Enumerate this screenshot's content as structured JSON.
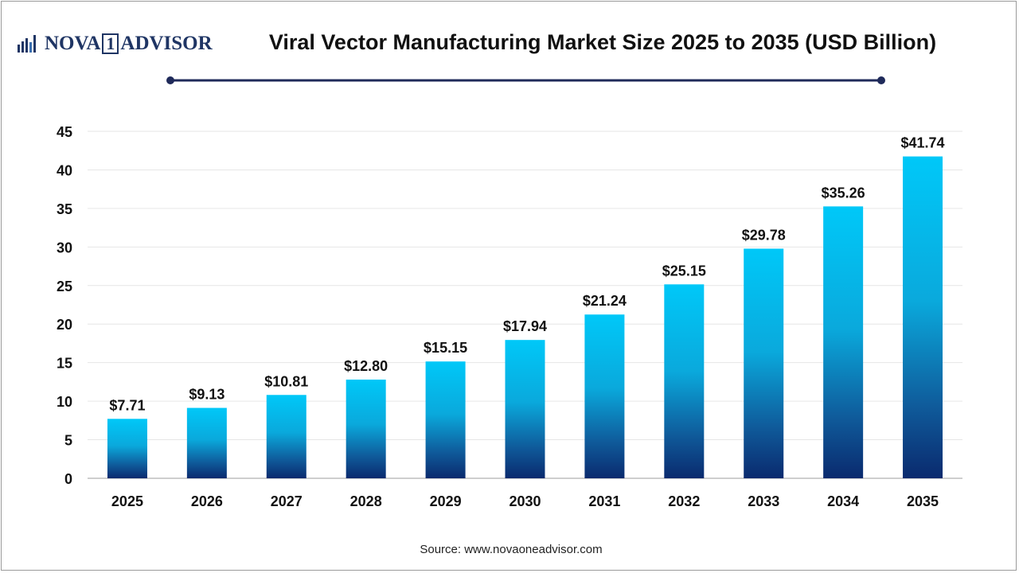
{
  "brand": {
    "logo_text": "NOVA",
    "logo_number": "1",
    "logo_text_2": "ADVISOR",
    "color": "#1f3564"
  },
  "header": {
    "title": "Viral Vector Manufacturing Market Size 2025 to 2035 (USD Billion)"
  },
  "footer": {
    "source": "Source: www.novaoneadvisor.com"
  },
  "colors": {
    "bar_top": "#00c8f8",
    "bar_bottom": "#0a2a6e",
    "divider": "#1f2a5a"
  },
  "chart_data": {
    "type": "bar",
    "title": "Viral Vector Manufacturing Market Size 2025 to 2035 (USD Billion)",
    "xlabel": "",
    "ylabel": "",
    "categories": [
      "2025",
      "2026",
      "2027",
      "2028",
      "2029",
      "2030",
      "2031",
      "2032",
      "2033",
      "2034",
      "2035"
    ],
    "values": [
      7.71,
      9.13,
      10.81,
      12.8,
      15.15,
      17.94,
      21.24,
      25.15,
      29.78,
      35.26,
      41.74
    ],
    "data_labels": [
      "$7.71",
      "$9.13",
      "$10.81",
      "$12.80",
      "$15.15",
      "$17.94",
      "$21.24",
      "$25.15",
      "$29.78",
      "$35.26",
      "$41.74"
    ],
    "ylim": [
      0,
      45
    ],
    "yticks": [
      0,
      5,
      10,
      15,
      20,
      25,
      30,
      35,
      40,
      45
    ],
    "grid": true,
    "legend": "none"
  }
}
